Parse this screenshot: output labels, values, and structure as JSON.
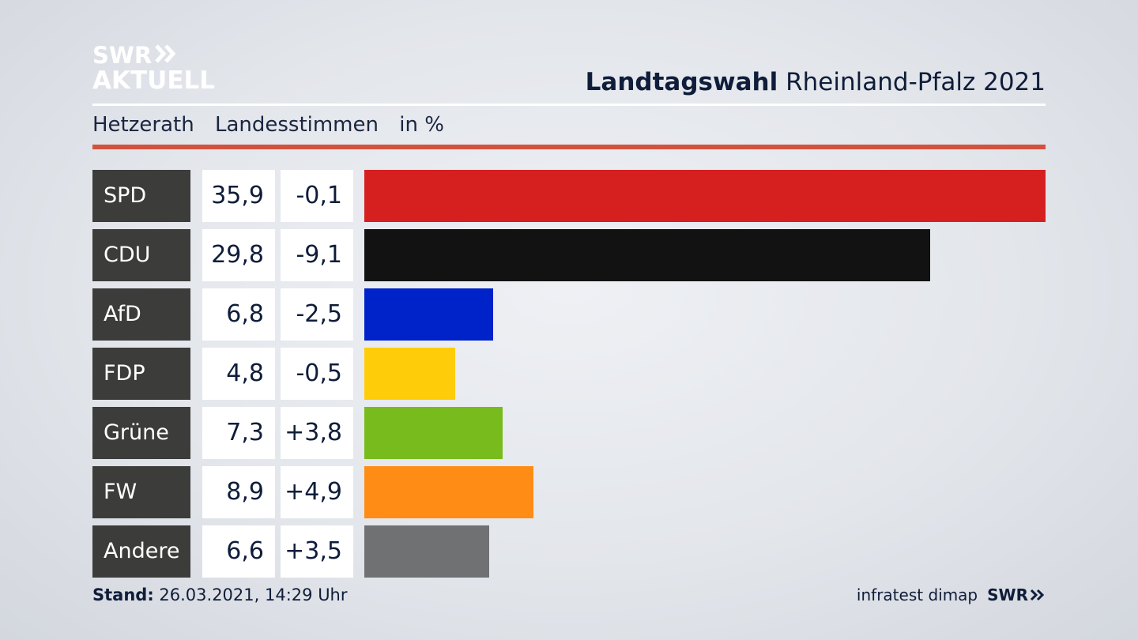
{
  "logo": {
    "line1": "SWR",
    "line2": "AKTUELL"
  },
  "header": {
    "title_bold": "Landtagswahl",
    "title_rest": "Rheinland-Pfalz 2021"
  },
  "subheader": {
    "location": "Hetzerath",
    "category": "Landesstimmen",
    "unit": "in %"
  },
  "footer": {
    "stand_label": "Stand:",
    "stand_value": "26.03.2021, 14:29 Uhr",
    "source": "infratest dimap",
    "brand": "SWR"
  },
  "chart_data": {
    "type": "bar",
    "orientation": "horizontal",
    "unit": "in %",
    "categories": [
      "SPD",
      "CDU",
      "AfD",
      "FDP",
      "Grüne",
      "FW",
      "Andere"
    ],
    "values": [
      35.9,
      29.8,
      6.8,
      4.8,
      7.3,
      8.9,
      6.6
    ],
    "value_labels": [
      "35,9",
      "29,8",
      "6,8",
      "4,8",
      "7,3",
      "8,9",
      "6,6"
    ],
    "diff_labels": [
      "-0,1",
      "-9,1",
      "-2,5",
      "-0,5",
      "+3,8",
      "+4,9",
      "+3,5"
    ],
    "colors": [
      "#d61f1f",
      "#121212",
      "#0022c9",
      "#ffcc0a",
      "#77bb1c",
      "#ff8c14",
      "#707173"
    ]
  }
}
